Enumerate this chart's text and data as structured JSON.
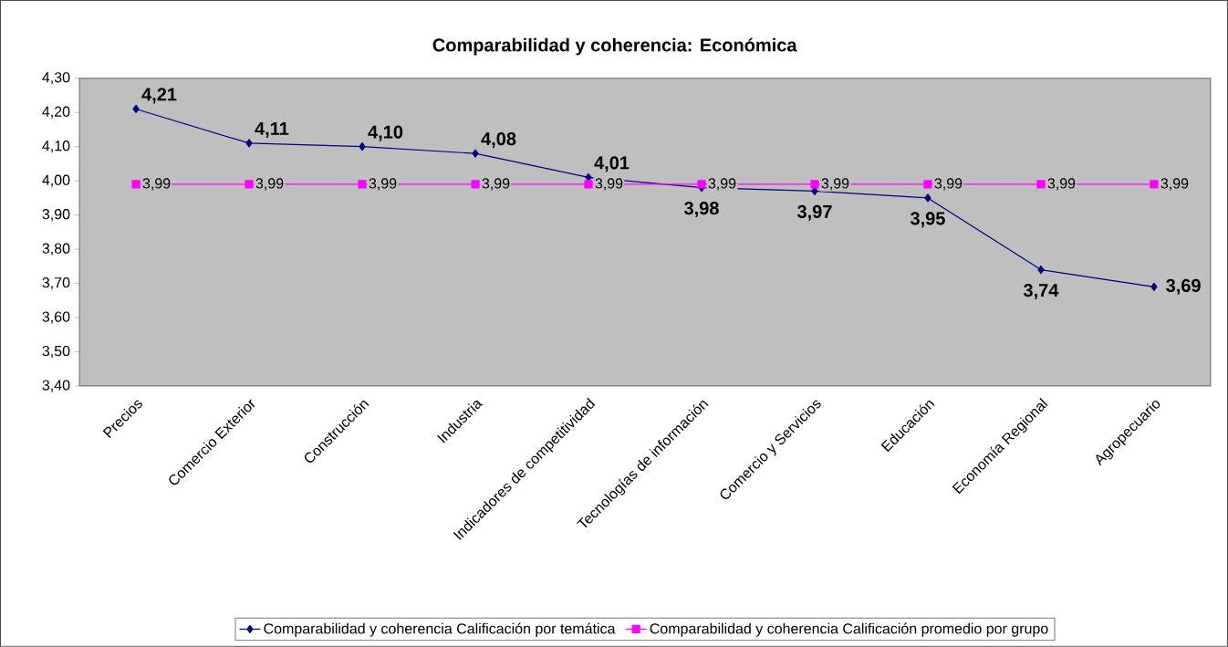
{
  "chart_data": {
    "type": "line",
    "title": "Comparabilidad y coherencia: Económica",
    "categories": [
      "Precios",
      "Comercio Exterior",
      "Construcción",
      "Industria",
      "Indicadores de competitividad",
      "Tecnologías de información",
      "Comercio y Servicios",
      "Educación",
      "Economía Regional",
      "Agropecuario"
    ],
    "series": [
      {
        "name": "Comparabilidad y coherencia Calificación por temática",
        "color": "#000080",
        "marker": "diamond",
        "values": [
          4.21,
          4.11,
          4.1,
          4.08,
          4.01,
          3.98,
          3.97,
          3.95,
          3.74,
          3.69
        ],
        "value_labels": [
          "4,21",
          "4,11",
          "4,10",
          "4,08",
          "4,01",
          "3,98",
          "3,97",
          "3,95",
          "3,74",
          "3,69"
        ]
      },
      {
        "name": "Comparabilidad y coherencia Calificación promedio por grupo",
        "color": "#ff00ff",
        "marker": "square",
        "values": [
          3.99,
          3.99,
          3.99,
          3.99,
          3.99,
          3.99,
          3.99,
          3.99,
          3.99,
          3.99
        ],
        "value_labels": [
          "3,99",
          "3,99",
          "3,99",
          "3,99",
          "3,99",
          "3,99",
          "3,99",
          "3,99",
          "3,99",
          "3,99"
        ]
      }
    ],
    "ylim": [
      3.4,
      4.3
    ],
    "yticks": [
      {
        "value": 3.4,
        "label": "3,40"
      },
      {
        "value": 3.5,
        "label": "3,50"
      },
      {
        "value": 3.6,
        "label": "3,60"
      },
      {
        "value": 3.7,
        "label": "3,70"
      },
      {
        "value": 3.8,
        "label": "3,80"
      },
      {
        "value": 3.9,
        "label": "3,90"
      },
      {
        "value": 4.0,
        "label": "4,00"
      },
      {
        "value": 4.1,
        "label": "4,10"
      },
      {
        "value": 4.2,
        "label": "4,20"
      },
      {
        "value": 4.3,
        "label": "4,30"
      }
    ],
    "grid": false,
    "legend": "bottom"
  }
}
